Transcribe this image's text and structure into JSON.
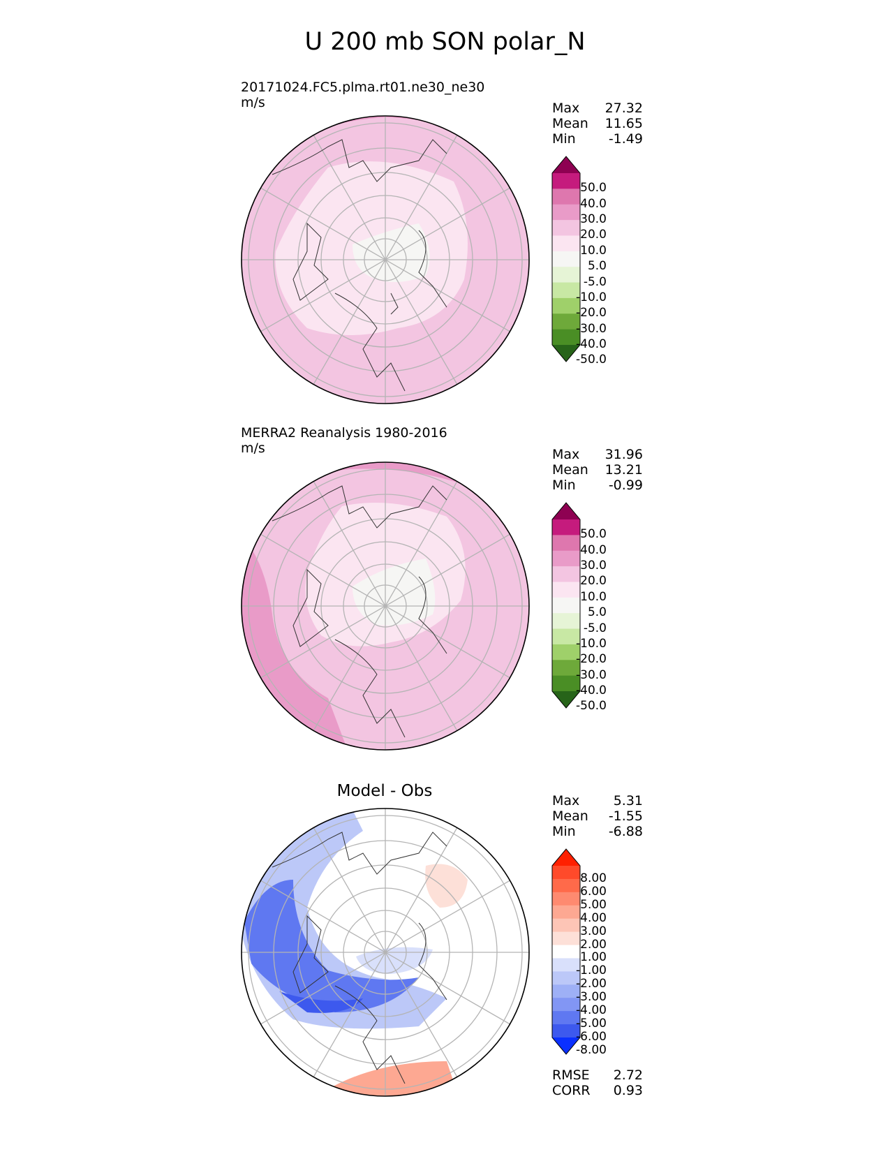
{
  "figure_title": "U 200 mb SON polar_N",
  "chart_data": [
    {
      "type": "heatmap",
      "projection": "north polar stereographic",
      "title": "20171024.FC5.plma.rt01.ne30_ne30",
      "units": "m/s",
      "stats": [
        {
          "label": "Max",
          "value": "27.32"
        },
        {
          "label": "Mean",
          "value": "11.65"
        },
        {
          "label": "Min",
          "value": "-1.49"
        }
      ],
      "colorbar": {
        "labels": [
          "50.0",
          "40.0",
          "30.0",
          "20.0",
          "10.0",
          "5.0",
          "-5.0",
          "-10.0",
          "-20.0",
          "-30.0",
          "-40.0",
          "-50.0"
        ],
        "colors": [
          "#8e0152",
          "#c51b7d",
          "#de77ae",
          "#e99bc8",
          "#f3c5e1",
          "#fbe5f1",
          "#f6f6f4",
          "#e6f4d6",
          "#c8e8a4",
          "#9fd06a",
          "#6ea93a",
          "#4a8e25",
          "#276419"
        ]
      }
    },
    {
      "type": "heatmap",
      "projection": "north polar stereographic",
      "title": "MERRA2 Reanalysis 1980-2016",
      "units": "m/s",
      "stats": [
        {
          "label": "Max",
          "value": "31.96"
        },
        {
          "label": "Mean",
          "value": "13.21"
        },
        {
          "label": "Min",
          "value": "-0.99"
        }
      ],
      "colorbar": {
        "labels": [
          "50.0",
          "40.0",
          "30.0",
          "20.0",
          "10.0",
          "5.0",
          "-5.0",
          "-10.0",
          "-20.0",
          "-30.0",
          "-40.0",
          "-50.0"
        ],
        "colors": [
          "#8e0152",
          "#c51b7d",
          "#de77ae",
          "#e99bc8",
          "#f3c5e1",
          "#fbe5f1",
          "#f6f6f4",
          "#e6f4d6",
          "#c8e8a4",
          "#9fd06a",
          "#6ea93a",
          "#4a8e25",
          "#276419"
        ]
      }
    },
    {
      "type": "heatmap",
      "projection": "north polar stereographic",
      "title": "Model - Obs",
      "stats": [
        {
          "label": "Max",
          "value": "5.31"
        },
        {
          "label": "Mean",
          "value": "-1.55"
        },
        {
          "label": "Min",
          "value": "-6.88"
        }
      ],
      "metrics": [
        {
          "label": "RMSE",
          "value": "2.72"
        },
        {
          "label": "CORR",
          "value": "0.93"
        }
      ],
      "colorbar": {
        "labels": [
          "8.00",
          "6.00",
          "5.00",
          "4.00",
          "3.00",
          "2.00",
          "1.00",
          "-1.00",
          "-2.00",
          "-3.00",
          "-4.00",
          "-5.00",
          "-6.00",
          "-8.00"
        ],
        "colors": [
          "#ff2000",
          "#ff4a2a",
          "#ff6a4a",
          "#fe8a70",
          "#fda892",
          "#fdc5b6",
          "#fde0d8",
          "#ffffff",
          "#d9e0fb",
          "#bcc8f8",
          "#9eb0f6",
          "#8296f4",
          "#5f78f1",
          "#3d59ee",
          "#0a30ff"
        ]
      }
    }
  ]
}
